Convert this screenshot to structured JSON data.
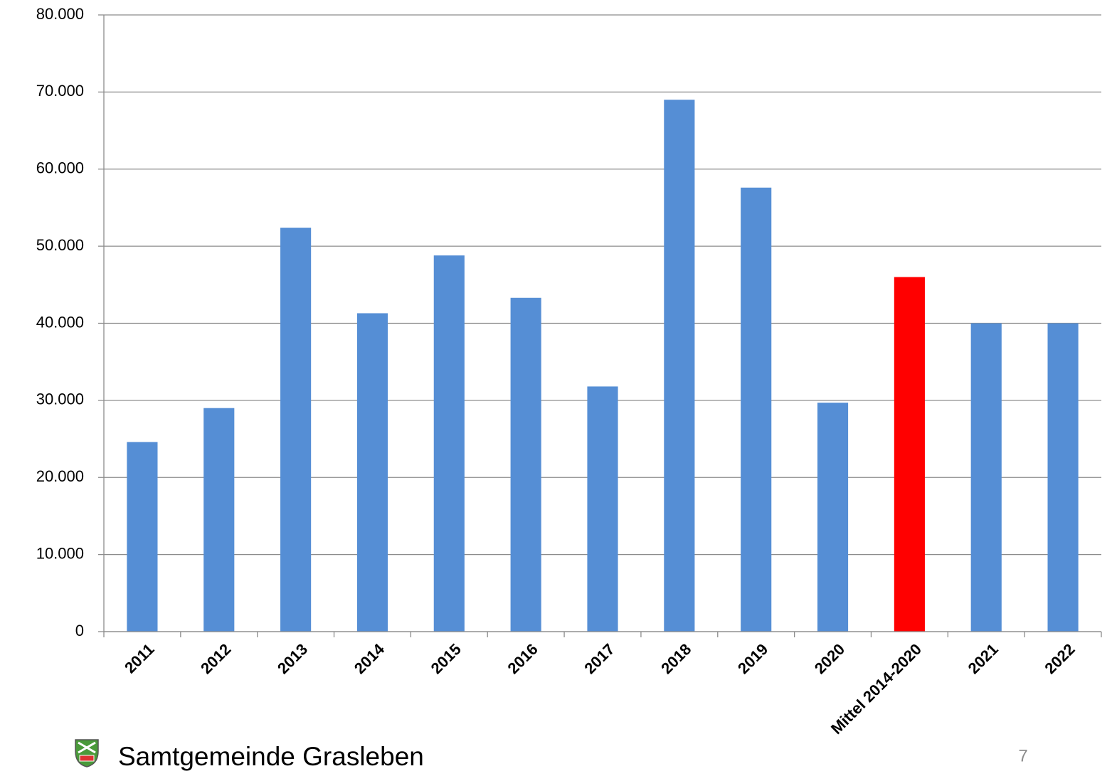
{
  "chart_data": {
    "type": "bar",
    "categories": [
      "2011",
      "2012",
      "2013",
      "2014",
      "2015",
      "2016",
      "2017",
      "2018",
      "2019",
      "2020",
      "Mittel 2014-2020",
      "2021",
      "2022"
    ],
    "values": [
      24600,
      29000,
      52400,
      41300,
      48800,
      43300,
      31800,
      69000,
      57600,
      29700,
      46000,
      40000,
      40000
    ],
    "colors": [
      "#558ed5",
      "#558ed5",
      "#558ed5",
      "#558ed5",
      "#558ed5",
      "#558ed5",
      "#558ed5",
      "#558ed5",
      "#558ed5",
      "#558ed5",
      "#ff0000",
      "#558ed5",
      "#558ed5"
    ],
    "ylim": [
      0,
      80000
    ],
    "yticks": [
      0,
      {
        "value": 10000,
        "label": "10.000"
      },
      {
        "value": 20000,
        "label": "20.000"
      },
      {
        "value": 30000,
        "label": "30.000"
      },
      {
        "value": 40000,
        "label": "40.000"
      },
      {
        "value": 50000,
        "label": "50.000"
      },
      {
        "value": 60000,
        "label": "60.000"
      },
      {
        "value": 70000,
        "label": "70.000"
      },
      {
        "value": 80000,
        "label": "80.000"
      }
    ],
    "grid": true
  },
  "footer": {
    "organization": "Samtgemeinde Grasleben",
    "page_number": "7"
  }
}
